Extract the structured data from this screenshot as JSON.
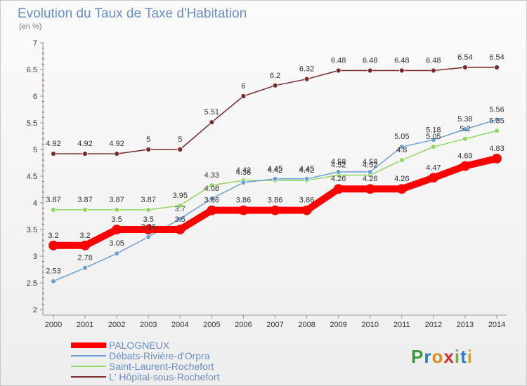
{
  "chart_data": {
    "type": "line",
    "title": "Evolution du Taux de Taxe d'Habitation",
    "subtitle": "(en %)",
    "x": [
      "2000",
      "2001",
      "2002",
      "2003",
      "2004",
      "2005",
      "2006",
      "2007",
      "2008",
      "2009",
      "2010",
      "2011",
      "2012",
      "2013",
      "2014"
    ],
    "ylim": [
      2,
      7
    ],
    "yticks": [
      2,
      2.5,
      3,
      3.5,
      4,
      4.5,
      5,
      5.5,
      6,
      6.5,
      7
    ],
    "ytick_labels": [
      "2",
      "2.5",
      "3",
      "3.5",
      "4",
      "4.5",
      "5",
      "5.5",
      "6",
      "6.5",
      "7"
    ],
    "grid": false,
    "legend_position": "bottom-left",
    "series": [
      {
        "name": "L' Hôpital-sous-Rochefort",
        "color": "#7a2a2a",
        "values": [
          4.92,
          4.92,
          4.92,
          5,
          5,
          5.51,
          6,
          6.2,
          6.32,
          6.48,
          6.48,
          6.48,
          6.48,
          6.54,
          6.54
        ],
        "labels": [
          "4.92",
          "4.92",
          "4.92",
          "5",
          "5",
          "5.51",
          "6",
          "6.2",
          "6.32",
          "6.48",
          "6.48",
          "6.48",
          "6.48",
          "6.54",
          "6.54"
        ]
      },
      {
        "name": "Saint-Laurent-Rochefort",
        "color": "#90d860",
        "values": [
          3.87,
          3.87,
          3.87,
          3.87,
          3.95,
          4.33,
          4.42,
          4.42,
          4.42,
          4.52,
          4.52,
          4.8,
          5.05,
          5.2,
          5.35
        ],
        "labels": [
          "3.87",
          "3.87",
          "3.87",
          "3.87",
          "3.95",
          "4.33",
          "4.42",
          "4.42",
          "4.42",
          "4.52",
          "4.52",
          "4.8",
          "5.05",
          "5.2",
          "5.35"
        ]
      },
      {
        "name": "Débats-Rivière-d'Orpra",
        "color": "#6a9fd8",
        "values": [
          2.53,
          2.78,
          3.05,
          3.36,
          3.7,
          4.08,
          4.38,
          4.45,
          4.45,
          4.58,
          4.58,
          5.05,
          5.18,
          5.38,
          5.56
        ],
        "labels": [
          "2.53",
          "2.78",
          "3.05",
          "3.36",
          "3.7",
          "4.08",
          "4.38",
          "4.45",
          "4.45",
          "4.58",
          "4.58",
          "5.05",
          "5.18",
          "5.38",
          "5.56"
        ]
      },
      {
        "name": "PALOGNEUX",
        "color": "#ff0000",
        "values": [
          3.2,
          3.2,
          3.5,
          3.5,
          3.5,
          3.86,
          3.86,
          3.86,
          3.86,
          4.26,
          4.26,
          4.26,
          4.47,
          4.69,
          4.83
        ],
        "labels": [
          "3.2",
          "3.2",
          "3.5",
          "3.5",
          "3.5",
          "3.86",
          "3.86",
          "3.86",
          "3.86",
          "4.26",
          "4.26",
          "4.26",
          "4.47",
          "4.69",
          "4.83"
        ]
      }
    ]
  },
  "legend": {
    "items": [
      {
        "label": "PALOGNEUX",
        "color": "#ff0000"
      },
      {
        "label": "Débats-Rivière-d'Orpra",
        "color": "#6a9fd8"
      },
      {
        "label": "Saint-Laurent-Rochefort",
        "color": "#90d860"
      },
      {
        "label": "L' Hôpital-sous-Rochefort",
        "color": "#7a2a2a"
      }
    ]
  },
  "logo": {
    "text": "Proxiti",
    "letters": [
      "P",
      "r",
      "o",
      "x",
      "i",
      "t",
      "i"
    ],
    "colors": [
      "#3a9a3a",
      "#2a7ad0",
      "#e08a20",
      "#d03030",
      "#6ab04c",
      "#2a7ad0",
      "#e0a020"
    ]
  }
}
